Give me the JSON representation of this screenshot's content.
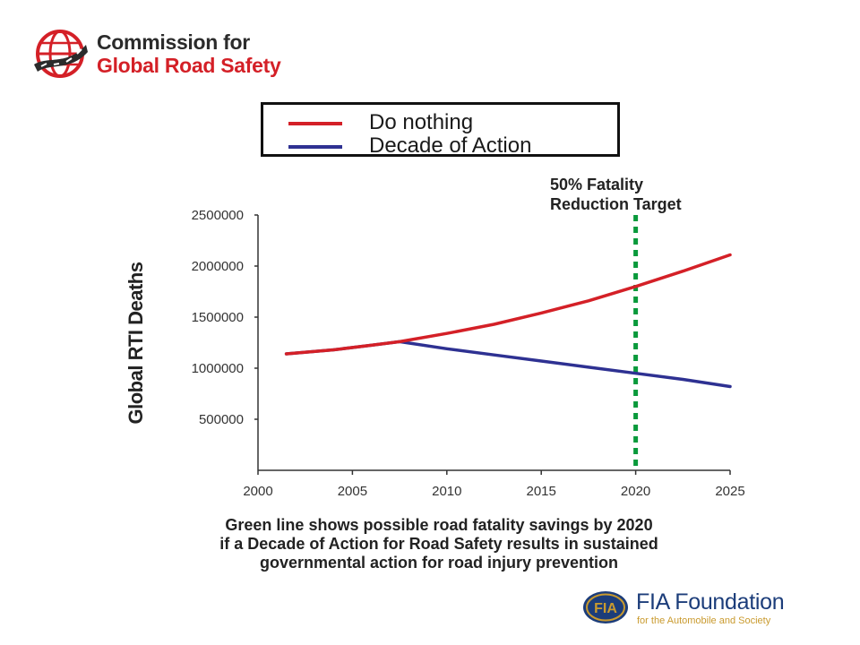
{
  "header": {
    "logo_line1": "Commission for",
    "logo_line2": "Global Road Safety",
    "logo_icon": "globe-road-icon"
  },
  "legend": {
    "items": [
      {
        "label": "Do nothing",
        "color": "#d42027"
      },
      {
        "label": "Decade of Action",
        "color": "#2e3192"
      }
    ]
  },
  "annotation": {
    "line1": "50% Fatality",
    "line2": "Reduction Target",
    "color": "#0a9a3c"
  },
  "caption": {
    "line1": "Green line shows possible road fatality savings by 2020",
    "line2": "if a Decade of Action for Road Safety results in sustained",
    "line3": "governmental action for road injury prevention"
  },
  "footer": {
    "logo_badge": "FIA",
    "logo_name": "FIA Foundation",
    "logo_sub": "for the Automobile and Society"
  },
  "chart_data": {
    "type": "line",
    "ylabel": "Global RTI Deaths",
    "xlabel": "",
    "xlim": [
      2000,
      2025
    ],
    "ylim": [
      0,
      2500000
    ],
    "xticks": [
      2000,
      2005,
      2010,
      2015,
      2020,
      2025
    ],
    "yticks": [
      500000,
      1000000,
      1500000,
      2000000,
      2500000
    ],
    "ytick_labels": [
      "500000",
      "1000000",
      "1500000",
      "2000000",
      "2500000"
    ],
    "xtick_labels": [
      "2000",
      "2005",
      "2010",
      "2015",
      "2020",
      "2025"
    ],
    "grid": false,
    "legend_position": "top",
    "series": [
      {
        "name": "Do nothing",
        "color": "#d42027",
        "x": [
          2001.5,
          2004,
          2006,
          2007.5,
          2010,
          2012.5,
          2015,
          2017.5,
          2020,
          2022.5,
          2025
        ],
        "y": [
          1140000,
          1180000,
          1225000,
          1260000,
          1340000,
          1430000,
          1540000,
          1660000,
          1800000,
          1950000,
          2110000
        ]
      },
      {
        "name": "Decade of Action",
        "color": "#2e3192",
        "x": [
          2001.5,
          2004,
          2006,
          2007.5,
          2010,
          2012.5,
          2015,
          2017.5,
          2020,
          2022.5,
          2025
        ],
        "y": [
          1140000,
          1180000,
          1225000,
          1260000,
          1190000,
          1130000,
          1070000,
          1010000,
          950000,
          890000,
          820000
        ]
      }
    ],
    "reference_line": {
      "x": 2020,
      "color": "#0a9a3c",
      "style": "dotted"
    }
  }
}
